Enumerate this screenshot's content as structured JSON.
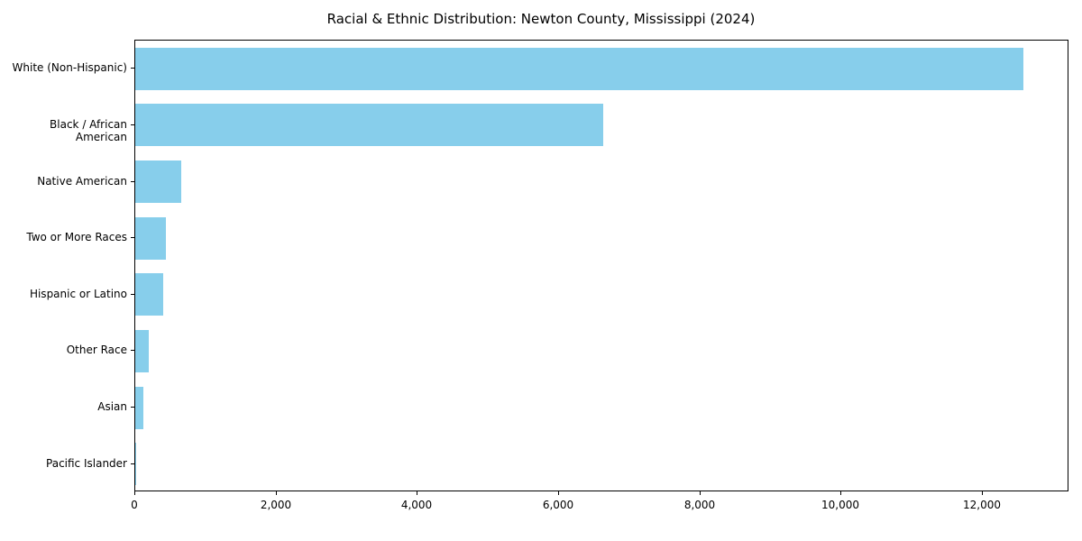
{
  "chart_data": {
    "type": "bar",
    "orientation": "horizontal",
    "title": "Racial & Ethnic Distribution: Newton County, Mississippi (2024)",
    "xlabel": "",
    "ylabel": "",
    "categories": [
      "White (Non-Hispanic)",
      "Black / African American",
      "Native American",
      "Two or More Races",
      "Hispanic or Latino",
      "Other Race",
      "Asian",
      "Pacific Islander"
    ],
    "values": [
      12570,
      6630,
      650,
      430,
      400,
      190,
      110,
      15
    ],
    "xlim": [
      0,
      13200
    ],
    "xticks": [
      0,
      2000,
      4000,
      6000,
      8000,
      10000,
      12000
    ],
    "xtick_labels": [
      "0",
      "2,000",
      "4,000",
      "6,000",
      "8,000",
      "10,000",
      "12,000"
    ],
    "bar_color": "#87ceeb",
    "grid": false,
    "legend": "none"
  }
}
